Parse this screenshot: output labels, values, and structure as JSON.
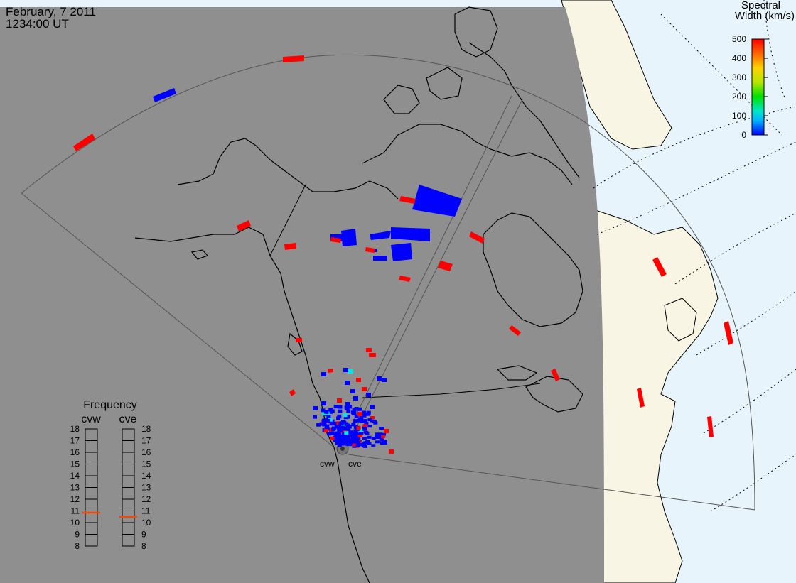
{
  "header": {
    "date": "February, 7 2011",
    "time": "1234:00 UT"
  },
  "legend": {
    "title_line1": "Spectral",
    "title_line2": "Width (km/s)",
    "ticks": [
      "500",
      "400",
      "300",
      "200",
      "100",
      "0"
    ],
    "colorscale": [
      "#0000ff",
      "#00b4ff",
      "#00e6c8",
      "#00e000",
      "#b4e600",
      "#ffd200",
      "#ff7800",
      "#ff0000"
    ]
  },
  "frequency_panel": {
    "title": "Frequency",
    "radar_left": "cvw",
    "radar_right": "cve",
    "scale": [
      "18",
      "17",
      "16",
      "15",
      "14",
      "13",
      "12",
      "11",
      "10",
      "9",
      "8"
    ],
    "cvw_value": 10.85,
    "cve_value": 10.5,
    "marker_color": "#ff4400"
  },
  "radars": {
    "left": "cvw",
    "right": "cve"
  },
  "colors": {
    "night": "#8f8f8f",
    "land_day": "#f8f5e4",
    "ocean_day": "#e8f4fc",
    "low_width": "#0000ff",
    "high_width": "#ff0000",
    "mid_width": "#00e6e6"
  }
}
